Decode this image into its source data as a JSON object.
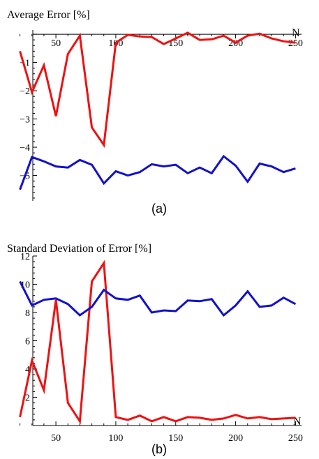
{
  "chart_data": [
    {
      "type": "line",
      "ylabel": "Average Error [%]",
      "xlabel": "N",
      "caption": "(a)",
      "xlim": [
        15,
        255
      ],
      "ylim": [
        -5.9,
        0.15
      ],
      "xticks": [
        50,
        100,
        150,
        200,
        250
      ],
      "yticks": [
        -1,
        -2,
        -3,
        -4,
        -5
      ],
      "x_axis_at_y": 0,
      "colors": [
        "#ee1111",
        "#1111cc"
      ],
      "series": [
        {
          "x": [
            20,
            30,
            40,
            50,
            60,
            70,
            80,
            90,
            100,
            110,
            120,
            130,
            140,
            150,
            160,
            170,
            180,
            190,
            200,
            210,
            220,
            230,
            240,
            250
          ],
          "values": [
            -0.6,
            -2.05,
            -1.1,
            -2.9,
            -0.7,
            -0.05,
            -3.3,
            -3.92,
            -0.3,
            -0.02,
            -0.08,
            -0.1,
            -0.35,
            -0.15,
            0.05,
            -0.2,
            -0.18,
            -0.05,
            -0.3,
            -0.05,
            0.02,
            -0.15,
            -0.25,
            -0.3
          ]
        },
        {
          "x": [
            20,
            30,
            40,
            50,
            60,
            70,
            80,
            90,
            100,
            110,
            120,
            130,
            140,
            150,
            160,
            170,
            180,
            190,
            200,
            210,
            220,
            230,
            240,
            250
          ],
          "values": [
            -5.5,
            -4.35,
            -4.5,
            -4.68,
            -4.72,
            -4.45,
            -4.62,
            -5.28,
            -4.85,
            -5.0,
            -4.88,
            -4.6,
            -4.68,
            -4.62,
            -4.92,
            -4.72,
            -4.92,
            -4.32,
            -4.65,
            -5.22,
            -4.58,
            -4.68,
            -4.88,
            -4.75
          ]
        }
      ]
    },
    {
      "type": "line",
      "ylabel": "Standard Deviation of Error [%]",
      "xlabel": "N",
      "caption": "(b)",
      "xlim": [
        15,
        255
      ],
      "ylim": [
        0,
        12
      ],
      "xticks": [
        50,
        100,
        150,
        200,
        250
      ],
      "yticks": [
        2,
        4,
        6,
        8,
        10,
        12
      ],
      "x_axis_at_y": 0,
      "colors": [
        "#ee1111",
        "#1111cc"
      ],
      "series": [
        {
          "x": [
            20,
            30,
            40,
            50,
            60,
            70,
            80,
            90,
            100,
            110,
            120,
            130,
            140,
            150,
            160,
            170,
            180,
            190,
            200,
            210,
            220,
            230,
            240,
            250
          ],
          "values": [
            0.6,
            4.6,
            2.5,
            8.9,
            1.6,
            0.3,
            10.2,
            11.5,
            0.6,
            0.4,
            0.7,
            0.3,
            0.6,
            0.3,
            0.6,
            0.55,
            0.4,
            0.5,
            0.75,
            0.5,
            0.6,
            0.45,
            0.5,
            0.55
          ]
        },
        {
          "x": [
            20,
            30,
            40,
            50,
            60,
            70,
            80,
            90,
            100,
            110,
            120,
            130,
            140,
            150,
            160,
            170,
            180,
            190,
            200,
            210,
            220,
            230,
            240,
            250
          ],
          "values": [
            10.2,
            8.5,
            8.9,
            9.0,
            8.6,
            7.8,
            8.4,
            9.6,
            9.0,
            8.9,
            9.2,
            8.0,
            8.15,
            8.1,
            8.85,
            8.8,
            8.95,
            7.8,
            8.5,
            9.5,
            8.4,
            8.5,
            9.05,
            8.6
          ]
        }
      ]
    }
  ]
}
